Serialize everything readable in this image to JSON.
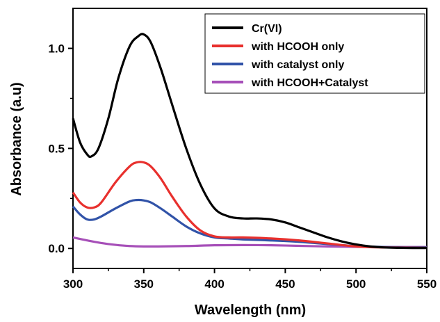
{
  "chart_data": {
    "type": "line",
    "xlabel": "Wavelength (nm)",
    "ylabel": "Absorbance (a.u)",
    "xlim": [
      300,
      550
    ],
    "ylim": [
      -0.1,
      1.2
    ],
    "xticks": [
      "300",
      "350",
      "400",
      "450",
      "500",
      "550"
    ],
    "yticks": [
      "0.0",
      "0.5",
      "1.0"
    ],
    "legend_position": "top-right",
    "series": [
      {
        "name": "Cr(VI)",
        "color": "#000000",
        "x": [
          300,
          305,
          310,
          313,
          318,
          325,
          332,
          340,
          346,
          350,
          355,
          362,
          370,
          380,
          390,
          400,
          410,
          420,
          430,
          440,
          450,
          460,
          470,
          480,
          490,
          500,
          510,
          520,
          530,
          540,
          550
        ],
        "y": [
          0.65,
          0.53,
          0.47,
          0.46,
          0.5,
          0.65,
          0.85,
          1.01,
          1.06,
          1.07,
          1.03,
          0.9,
          0.72,
          0.5,
          0.32,
          0.2,
          0.16,
          0.15,
          0.15,
          0.145,
          0.13,
          0.105,
          0.08,
          0.055,
          0.035,
          0.02,
          0.01,
          0.005,
          0.003,
          0.002,
          0.002
        ]
      },
      {
        "name": "with HCOOH only",
        "color": "#e8302d",
        "x": [
          300,
          305,
          310,
          315,
          320,
          330,
          340,
          345,
          350,
          355,
          362,
          370,
          380,
          390,
          400,
          410,
          420,
          440,
          460,
          480,
          500,
          520,
          550
        ],
        "y": [
          0.28,
          0.23,
          0.205,
          0.205,
          0.23,
          0.33,
          0.41,
          0.43,
          0.43,
          0.41,
          0.35,
          0.26,
          0.16,
          0.09,
          0.06,
          0.055,
          0.055,
          0.05,
          0.04,
          0.025,
          0.01,
          0.005,
          0.003
        ]
      },
      {
        "name": "with catalyst only",
        "color": "#3153a8",
        "x": [
          300,
          305,
          310,
          315,
          320,
          330,
          340,
          345,
          350,
          355,
          362,
          370,
          380,
          390,
          400,
          410,
          420,
          440,
          460,
          480,
          500,
          520,
          550
        ],
        "y": [
          0.21,
          0.17,
          0.145,
          0.145,
          0.16,
          0.2,
          0.235,
          0.242,
          0.24,
          0.23,
          0.2,
          0.16,
          0.11,
          0.075,
          0.055,
          0.05,
          0.045,
          0.04,
          0.033,
          0.022,
          0.012,
          0.007,
          0.006
        ]
      },
      {
        "name": "with HCOOH+Catalyst",
        "color": "#a64fb8",
        "x": [
          300,
          310,
          320,
          330,
          340,
          350,
          360,
          380,
          400,
          420,
          440,
          460,
          480,
          500,
          520,
          550
        ],
        "y": [
          0.055,
          0.04,
          0.027,
          0.018,
          0.012,
          0.01,
          0.01,
          0.012,
          0.016,
          0.017,
          0.016,
          0.013,
          0.01,
          0.008,
          0.007,
          0.007
        ]
      }
    ]
  }
}
